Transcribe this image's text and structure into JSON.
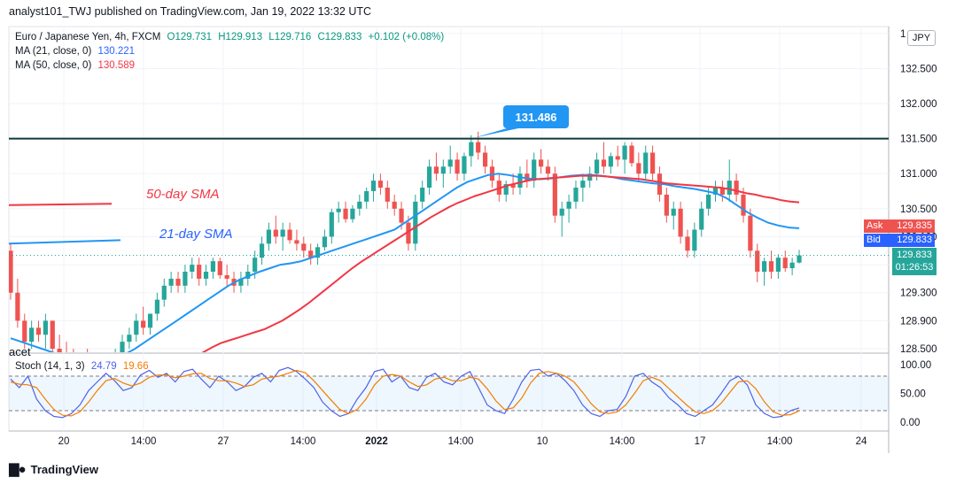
{
  "header": {
    "publisher": "analyst101_TWJ published on TradingView.com, Jan 19, 2022 13:32 UTC"
  },
  "legend": {
    "symbol": "Euro / Japanese Yen, 4h, FXCM",
    "ohlc": {
      "O": "O129.731",
      "H": "H129.913",
      "L": "L129.716",
      "C": "C129.833",
      "change": "+0.102 (+0.08%)"
    },
    "ma21": {
      "label": "MA (21, close, 0)",
      "value": "130.221"
    },
    "ma50": {
      "label": "MA (50, close, 0)",
      "value": "130.589"
    },
    "stoch": {
      "label": "Stoch (14, 1, 3)",
      "k": "24.79",
      "d": "19.66"
    }
  },
  "currency_button": "JPY",
  "price_tags": {
    "ask_label": "Ask",
    "ask_value": "129.835",
    "bid_label": "Bid",
    "bid_value": "129.833",
    "last_value": "129.833",
    "countdown": "01:26:53"
  },
  "annotations": {
    "peak_label": "131.486",
    "sma50_label": "50-day SMA",
    "sma21_label": "21-day SMA",
    "partial_left_text": "acet"
  },
  "colors": {
    "bull": "#26a69a",
    "bear": "#ef5350",
    "ma21": "#2196f3",
    "ma50": "#f23645",
    "resistance": "#0f3b3a",
    "callout": "#2196f3",
    "stochK": "#4f62e6",
    "stochD": "#f57c00"
  },
  "footer": {
    "brand": "TradingView"
  },
  "chart_data": [
    {
      "type": "candlestick",
      "title": "Euro / Japanese Yen, 4h, FXCM",
      "y_ticks": [
        "128.500",
        "128.900",
        "129.300",
        "129.700",
        "130.100",
        "130.500",
        "131.000",
        "131.500",
        "132.000",
        "132.500",
        "1"
      ],
      "x_ticks": [
        "20",
        "14:00",
        "27",
        "14:00",
        "2022",
        "14:00",
        "10",
        "14:00",
        "17",
        "14:00",
        "24"
      ],
      "ylim": [
        128.45,
        133.1
      ],
      "resistance_level": 131.5,
      "peak_value": 131.486,
      "candles": [
        [
          129.9,
          130.0,
          129.2,
          129.3
        ],
        [
          129.3,
          129.5,
          128.8,
          128.9
        ],
        [
          128.9,
          129.0,
          128.5,
          128.6
        ],
        [
          128.6,
          128.9,
          128.5,
          128.8
        ],
        [
          128.8,
          128.9,
          128.6,
          128.7
        ],
        [
          128.7,
          129.0,
          128.5,
          128.9
        ],
        [
          128.9,
          128.9,
          128.4,
          128.5
        ],
        [
          128.5,
          128.7,
          128.3,
          128.4
        ],
        [
          128.4,
          128.6,
          128.2,
          128.3
        ],
        [
          128.3,
          128.5,
          128.1,
          128.2
        ],
        [
          128.2,
          128.4,
          128.0,
          128.3
        ],
        [
          128.3,
          128.5,
          128.1,
          128.2
        ],
        [
          128.2,
          128.4,
          128.0,
          128.1
        ],
        [
          128.1,
          128.3,
          127.9,
          128.2
        ],
        [
          128.2,
          128.4,
          128.0,
          128.3
        ],
        [
          128.3,
          128.5,
          128.1,
          128.4
        ],
        [
          128.4,
          128.7,
          128.3,
          128.6
        ],
        [
          128.6,
          128.8,
          128.5,
          128.7
        ],
        [
          128.7,
          129.0,
          128.6,
          128.9
        ],
        [
          128.9,
          129.1,
          128.7,
          128.8
        ],
        [
          128.8,
          129.0,
          128.7,
          129.0
        ],
        [
          129.0,
          129.3,
          128.9,
          129.2
        ],
        [
          129.2,
          129.5,
          129.1,
          129.4
        ],
        [
          129.4,
          129.6,
          129.3,
          129.5
        ],
        [
          129.5,
          129.6,
          129.3,
          129.4
        ],
        [
          129.4,
          129.7,
          129.3,
          129.6
        ],
        [
          129.6,
          129.8,
          129.5,
          129.7
        ],
        [
          129.7,
          129.8,
          129.4,
          129.5
        ],
        [
          129.5,
          129.7,
          129.4,
          129.6
        ],
        [
          129.6,
          129.8,
          129.5,
          129.75
        ],
        [
          129.75,
          129.8,
          129.5,
          129.55
        ],
        [
          129.55,
          129.7,
          129.4,
          129.5
        ],
        [
          129.5,
          129.6,
          129.3,
          129.4
        ],
        [
          129.4,
          129.6,
          129.3,
          129.5
        ],
        [
          129.5,
          129.7,
          129.4,
          129.6
        ],
        [
          129.6,
          129.9,
          129.5,
          129.8
        ],
        [
          129.8,
          130.1,
          129.7,
          130.0
        ],
        [
          130.0,
          130.3,
          129.9,
          130.2
        ],
        [
          130.2,
          130.4,
          130.0,
          130.1
        ],
        [
          130.1,
          130.3,
          129.9,
          130.2
        ],
        [
          130.2,
          130.3,
          130.0,
          130.05
        ],
        [
          130.05,
          130.2,
          129.9,
          130.0
        ],
        [
          130.0,
          130.1,
          129.8,
          129.9
        ],
        [
          129.9,
          130.0,
          129.7,
          129.8
        ],
        [
          129.8,
          130.0,
          129.7,
          129.95
        ],
        [
          129.95,
          130.2,
          129.9,
          130.1
        ],
        [
          130.1,
          130.5,
          130.0,
          130.45
        ],
        [
          130.45,
          130.6,
          130.3,
          130.5
        ],
        [
          130.5,
          130.6,
          130.3,
          130.35
        ],
        [
          130.35,
          130.55,
          130.3,
          130.5
        ],
        [
          130.5,
          130.7,
          130.4,
          130.6
        ],
        [
          130.6,
          130.8,
          130.5,
          130.75
        ],
        [
          130.75,
          131.0,
          130.6,
          130.9
        ],
        [
          130.9,
          131.0,
          130.7,
          130.8
        ],
        [
          130.8,
          130.9,
          130.5,
          130.6
        ],
        [
          130.6,
          130.7,
          130.4,
          130.5
        ],
        [
          130.5,
          130.6,
          130.2,
          130.3
        ],
        [
          130.3,
          130.4,
          129.9,
          130.0
        ],
        [
          130.0,
          130.7,
          129.9,
          130.6
        ],
        [
          130.6,
          130.9,
          130.5,
          130.8
        ],
        [
          130.8,
          131.2,
          130.7,
          131.1
        ],
        [
          131.1,
          131.3,
          130.9,
          131.0
        ],
        [
          131.0,
          131.2,
          130.8,
          131.1
        ],
        [
          131.1,
          131.4,
          131.0,
          131.2
        ],
        [
          131.2,
          131.3,
          130.9,
          131.0
        ],
        [
          131.0,
          131.3,
          130.9,
          131.25
        ],
        [
          131.25,
          131.55,
          131.1,
          131.45
        ],
        [
          131.45,
          131.6,
          131.2,
          131.3
        ],
        [
          131.3,
          131.4,
          131.0,
          131.1
        ],
        [
          131.1,
          131.2,
          130.8,
          130.9
        ],
        [
          130.9,
          131.0,
          130.6,
          130.7
        ],
        [
          130.7,
          130.9,
          130.6,
          130.85
        ],
        [
          130.85,
          131.0,
          130.7,
          130.8
        ],
        [
          130.8,
          131.1,
          130.7,
          131.0
        ],
        [
          131.0,
          131.2,
          130.8,
          130.9
        ],
        [
          130.9,
          131.3,
          130.8,
          131.2
        ],
        [
          131.2,
          131.35,
          131.0,
          131.1
        ],
        [
          131.1,
          131.2,
          130.9,
          131.0
        ],
        [
          131.0,
          131.1,
          130.3,
          130.4
        ],
        [
          130.4,
          130.6,
          130.1,
          130.5
        ],
        [
          130.5,
          130.7,
          130.3,
          130.6
        ],
        [
          130.6,
          130.9,
          130.5,
          130.8
        ],
        [
          130.8,
          131.0,
          130.6,
          130.9
        ],
        [
          130.9,
          131.1,
          130.8,
          131.0
        ],
        [
          131.0,
          131.3,
          130.9,
          131.2
        ],
        [
          131.2,
          131.45,
          131.0,
          131.1
        ],
        [
          131.1,
          131.3,
          131.0,
          131.25
        ],
        [
          131.25,
          131.4,
          131.1,
          131.2
        ],
        [
          131.2,
          131.45,
          131.0,
          131.4
        ],
        [
          131.4,
          131.45,
          131.1,
          131.15
        ],
        [
          131.15,
          131.3,
          130.9,
          131.0
        ],
        [
          131.0,
          131.4,
          130.9,
          131.3
        ],
        [
          131.3,
          131.4,
          130.9,
          131.0
        ],
        [
          131.0,
          131.1,
          130.6,
          130.7
        ],
        [
          130.7,
          130.8,
          130.3,
          130.4
        ],
        [
          130.4,
          130.6,
          130.2,
          130.5
        ],
        [
          130.5,
          130.6,
          130.0,
          130.1
        ],
        [
          130.1,
          130.2,
          129.8,
          129.9
        ],
        [
          129.9,
          130.3,
          129.8,
          130.2
        ],
        [
          130.2,
          130.6,
          130.1,
          130.5
        ],
        [
          130.5,
          130.8,
          130.4,
          130.7
        ],
        [
          130.7,
          130.9,
          130.6,
          130.8
        ],
        [
          130.8,
          130.9,
          130.6,
          130.7
        ],
        [
          130.7,
          131.2,
          130.6,
          130.9
        ],
        [
          130.9,
          131.0,
          130.6,
          130.7
        ],
        [
          130.7,
          130.8,
          130.3,
          130.4
        ],
        [
          130.4,
          130.5,
          129.8,
          129.9
        ],
        [
          129.9,
          130.0,
          129.45,
          129.6
        ],
        [
          129.6,
          129.8,
          129.4,
          129.75
        ],
        [
          129.75,
          129.9,
          129.5,
          129.6
        ],
        [
          129.6,
          129.85,
          129.5,
          129.8
        ],
        [
          129.8,
          129.9,
          129.6,
          129.65
        ],
        [
          129.65,
          129.8,
          129.55,
          129.73
        ],
        [
          129.73,
          129.913,
          129.716,
          129.833
        ]
      ],
      "ma21": [
        128.65,
        128.6,
        128.55,
        128.5,
        128.45,
        128.4,
        128.35,
        128.3,
        128.3,
        128.32,
        128.36,
        128.42,
        128.5,
        128.6,
        128.7,
        128.8,
        128.9,
        129.0,
        129.1,
        129.2,
        129.3,
        129.4,
        129.48,
        129.54,
        129.6,
        129.65,
        129.7,
        129.72,
        129.75,
        129.8,
        129.85,
        129.9,
        129.95,
        130.0,
        130.05,
        130.1,
        130.15,
        130.2,
        130.3,
        130.4,
        130.5,
        130.6,
        130.7,
        130.8,
        130.88,
        130.93,
        130.98,
        131.0,
        130.98,
        130.95,
        130.93,
        130.92,
        130.93,
        130.95,
        130.97,
        130.98,
        130.98,
        130.97,
        130.95,
        130.92,
        130.9,
        130.88,
        130.86,
        130.85,
        130.82,
        130.8,
        130.78,
        130.75,
        130.72,
        130.65,
        130.55,
        130.45,
        130.37,
        130.3,
        130.26,
        130.23,
        130.22
      ],
      "ma50": [
        128.0,
        128.1,
        128.2,
        128.3,
        128.38,
        128.45,
        128.52,
        128.58,
        128.62,
        128.66,
        128.7,
        128.74,
        128.78,
        128.84,
        128.9,
        128.98,
        129.06,
        129.15,
        129.25,
        129.35,
        129.45,
        129.55,
        129.65,
        129.74,
        129.82,
        129.9,
        129.98,
        130.06,
        130.14,
        130.22,
        130.3,
        130.38,
        130.45,
        130.52,
        130.58,
        130.63,
        130.68,
        130.72,
        130.76,
        130.8,
        130.84,
        130.87,
        130.9,
        130.92,
        130.93,
        130.94,
        130.95,
        130.96,
        130.97,
        130.97,
        130.97,
        130.96,
        130.95,
        130.94,
        130.93,
        130.92,
        130.9,
        130.88,
        130.86,
        130.85,
        130.84,
        130.83,
        130.82,
        130.81,
        130.8,
        130.78,
        130.75,
        130.72,
        130.7,
        130.67,
        130.65,
        130.62,
        130.6,
        130.59
      ],
      "ma21_offscreen_start": [
        130.0,
        130.05
      ],
      "ma50_offscreen_start": [
        130.55,
        130.57
      ]
    },
    {
      "type": "line",
      "title": "Stoch (14, 1, 3)",
      "y_ticks": [
        "100.00",
        "50.00",
        "0.00"
      ],
      "ylim": [
        0,
        100
      ],
      "bands": [
        80,
        20
      ],
      "series": [
        {
          "name": "%K",
          "values": [
            75,
            60,
            80,
            40,
            20,
            10,
            8,
            15,
            30,
            55,
            70,
            85,
            72,
            55,
            60,
            82,
            90,
            78,
            85,
            70,
            88,
            92,
            75,
            60,
            80,
            70,
            55,
            62,
            78,
            85,
            70,
            90,
            95,
            88,
            75,
            60,
            35,
            20,
            10,
            15,
            40,
            60,
            88,
            92,
            70,
            80,
            60,
            55,
            78,
            85,
            70,
            65,
            80,
            88,
            60,
            30,
            20,
            15,
            40,
            70,
            90,
            92,
            80,
            85,
            72,
            55,
            30,
            15,
            10,
            20,
            22,
            45,
            80,
            85,
            70,
            60,
            42,
            30,
            15,
            10,
            20,
            30,
            50,
            72,
            80,
            65,
            30,
            15,
            8,
            10,
            20,
            24.79
          ]
        },
        {
          "name": "%D",
          "values": [
            70,
            66,
            65,
            60,
            40,
            22,
            12,
            11,
            18,
            35,
            55,
            72,
            76,
            68,
            63,
            68,
            78,
            82,
            82,
            77,
            80,
            84,
            85,
            76,
            72,
            72,
            68,
            62,
            65,
            75,
            78,
            80,
            85,
            90,
            86,
            72,
            55,
            38,
            22,
            15,
            22,
            40,
            65,
            80,
            83,
            80,
            70,
            62,
            65,
            75,
            78,
            72,
            72,
            78,
            75,
            58,
            37,
            22,
            25,
            42,
            68,
            85,
            88,
            85,
            80,
            70,
            52,
            32,
            18,
            15,
            18,
            30,
            50,
            72,
            78,
            72,
            58,
            44,
            30,
            18,
            15,
            20,
            33,
            52,
            70,
            72,
            58,
            35,
            18,
            12,
            13,
            19.66
          ]
        }
      ]
    }
  ]
}
